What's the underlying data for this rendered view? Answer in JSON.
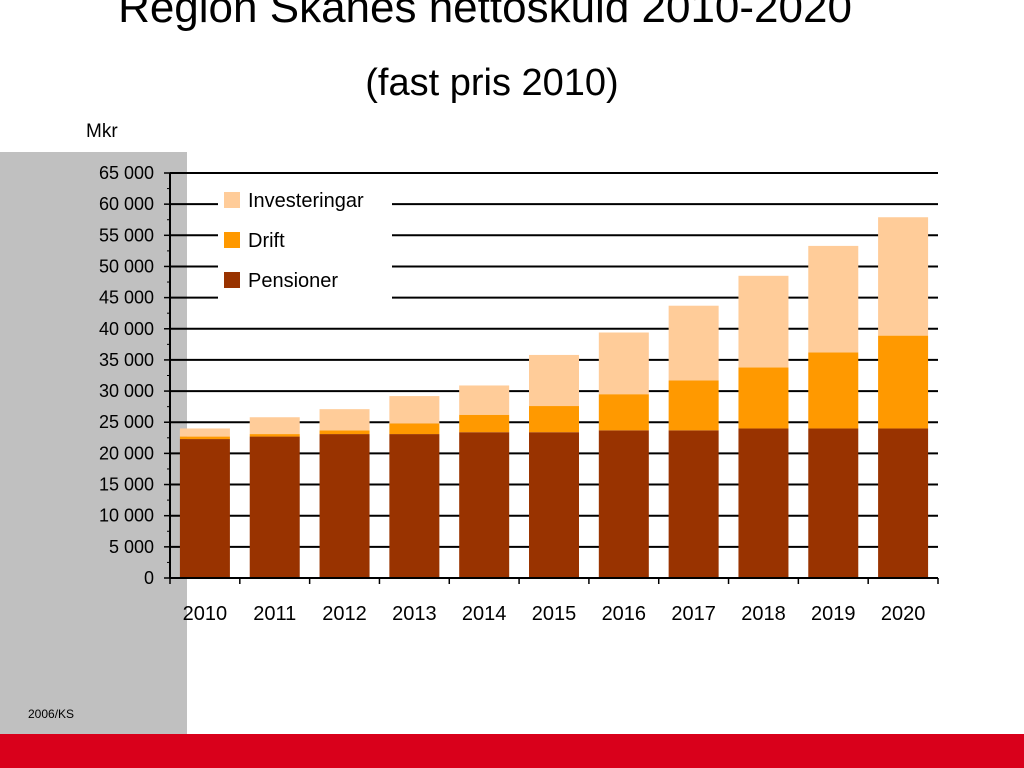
{
  "slide": {
    "title": "Region Skånes nettoskuld 2010-2020",
    "subtitle": "(fast pris 2010)",
    "unit": "Mkr",
    "footnote": "2006/KS"
  },
  "colors": {
    "Pensioner": "#993300",
    "Drift": "#ff9900",
    "Investeringar": "#ffcc99",
    "brand_bar": "#d9001b",
    "side_panel": "#c0c0c0"
  },
  "chart_data": {
    "type": "bar",
    "stacked": true,
    "categories": [
      "2010",
      "2011",
      "2012",
      "2013",
      "2014",
      "2015",
      "2016",
      "2017",
      "2018",
      "2019",
      "2020"
    ],
    "series": [
      {
        "name": "Pensioner",
        "values": [
          22300,
          22700,
          23100,
          23100,
          23400,
          23400,
          23700,
          23700,
          24000,
          24000,
          24000
        ]
      },
      {
        "name": "Drift",
        "values": [
          400,
          400,
          600,
          1700,
          2800,
          4200,
          5800,
          8000,
          9800,
          12200,
          14900
        ]
      },
      {
        "name": "Investeringar",
        "values": [
          1300,
          2700,
          3400,
          4400,
          4700,
          8200,
          9900,
          12000,
          14700,
          17100,
          19000
        ]
      }
    ],
    "legend": [
      "Investeringar",
      "Drift",
      "Pensioner"
    ],
    "legend_position": "top-left",
    "ylabel": "Mkr",
    "ylim": [
      0,
      65000
    ],
    "yticks": [
      "0",
      "5 000",
      "10 000",
      "15 000",
      "20 000",
      "25 000",
      "30 000",
      "35 000",
      "40 000",
      "45 000",
      "50 000",
      "55 000",
      "60 000",
      "65 000"
    ],
    "grid": true
  }
}
